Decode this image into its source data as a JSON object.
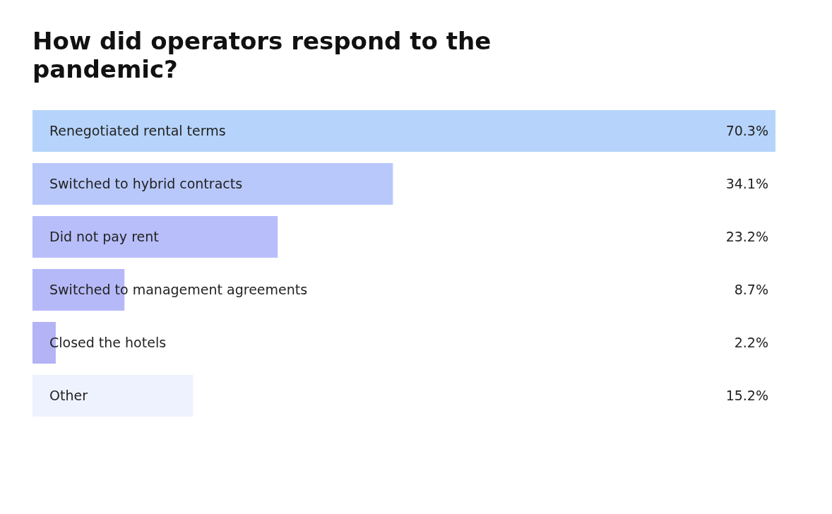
{
  "chart_data": {
    "type": "bar",
    "orientation": "horizontal",
    "title": "How did operators respond to the pandemic?",
    "categories": [
      "Renegotiated rental terms",
      "Switched to hybrid contracts",
      "Did not pay rent",
      "Switched to management agreements",
      "Closed the hotels",
      "Other"
    ],
    "values": [
      70.3,
      34.1,
      23.2,
      8.7,
      2.2,
      15.2
    ],
    "value_labels": [
      "70.3%",
      "34.1%",
      "23.2%",
      "8.7%",
      "2.2%",
      "15.2%"
    ],
    "colors": [
      "#b6d4fb",
      "#b8c8fa",
      "#b7befa",
      "#b6b9f8",
      "#b3b3f5",
      "#eef2fe"
    ],
    "grid": false,
    "legend": false
  }
}
